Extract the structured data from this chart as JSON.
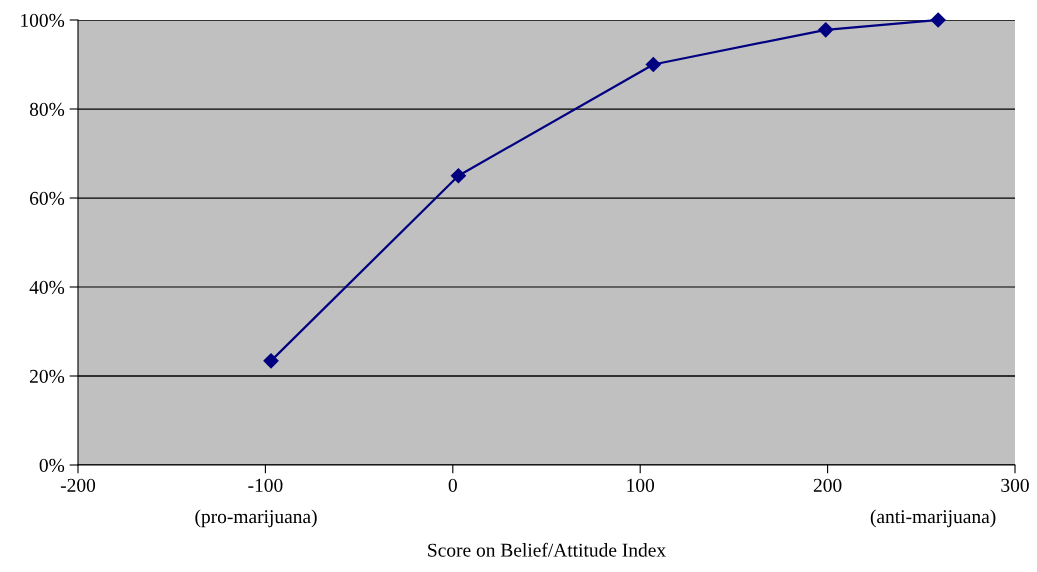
{
  "chart_data": {
    "type": "line",
    "xlabel": "Score on Belief/Attitude Index",
    "annotations": [
      "(pro-marijuana)",
      "(anti-marijuana)"
    ],
    "x": [
      -97,
      3,
      107,
      199,
      259
    ],
    "series": [
      {
        "color": "#000080",
        "values": [
          23.4,
          65,
          90,
          97.8,
          100
        ]
      }
    ],
    "xlim": [
      -200,
      300
    ],
    "xticks": [
      -200,
      -100,
      0,
      100,
      200,
      300
    ],
    "ylim": [
      0,
      100
    ],
    "yticks": [
      {
        "value": 0,
        "label": "0%"
      },
      {
        "value": 20,
        "label": "20%"
      },
      {
        "value": 40,
        "label": "40%"
      },
      {
        "value": 60,
        "label": "60%"
      },
      {
        "value": 80,
        "label": "80%"
      },
      {
        "value": 100,
        "label": "100%"
      }
    ],
    "grid": "y",
    "marker": "diamond",
    "line_style": "solid",
    "legend": false
  }
}
